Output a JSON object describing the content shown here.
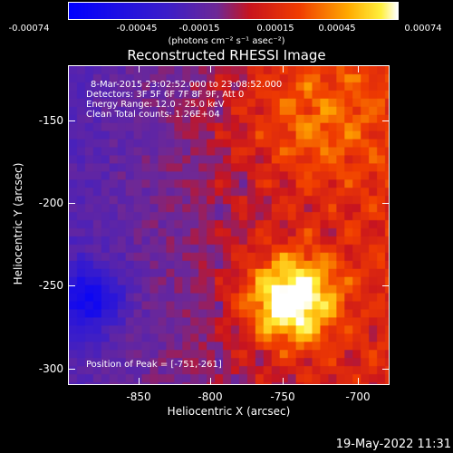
{
  "colorbar": {
    "ticks": [
      "-0.00074",
      "-0.00045",
      "-0.00015",
      "0.00015",
      "0.00045",
      "0.00074"
    ],
    "units": "(photons cm⁻² s⁻¹ asec⁻²)"
  },
  "title": "Reconstructed RHESSI Image",
  "info": {
    "time_range": "8-Mar-2015 23:02:52.000 to 23:08:52.000",
    "detectors": "Detectors: 3F 5F 6F 7F 8F 9F, Att 0",
    "energy_range": "Energy Range: 12.0 - 25.0 keV",
    "clean": "Clean     Total counts: 1.26E+04"
  },
  "peak": "Position of Peak = [-751,-261]",
  "axes": {
    "xlabel": "Heliocentric X (arcsec)",
    "ylabel": "Heliocentric Y (arcsec)",
    "xticks": [
      "-850",
      "-800",
      "-750",
      "-700"
    ],
    "yticks": [
      "-150",
      "-200",
      "-250",
      "-300"
    ]
  },
  "timestamp": "19-May-2022 11:31",
  "colors": {
    "background": "#000000",
    "foreground": "#ffffff"
  }
}
